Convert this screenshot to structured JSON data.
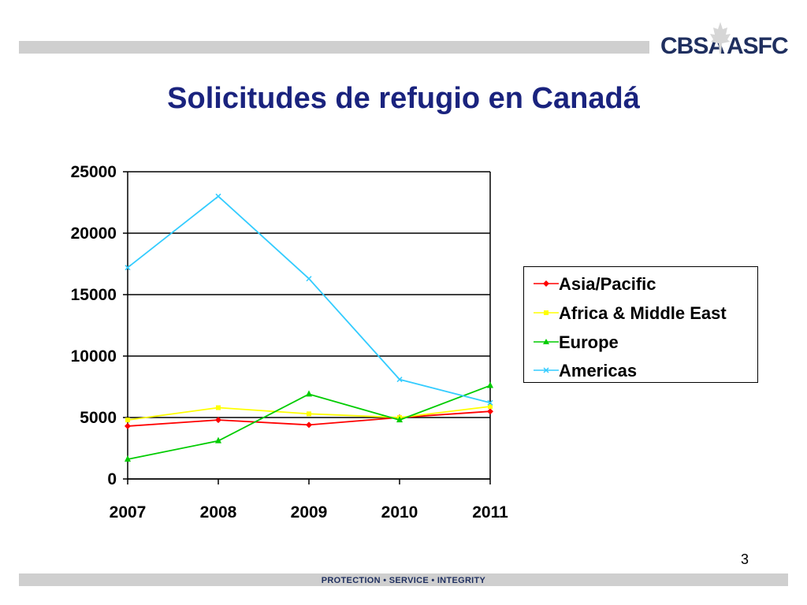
{
  "header": {
    "logo_left": "CBSA",
    "logo_right": "ASFC",
    "title": "Solicitudes de refugio en Canadá"
  },
  "chart_data": {
    "type": "line",
    "title": "",
    "xlabel": "",
    "ylabel": "",
    "categories": [
      "2007",
      "2008",
      "2009",
      "2010",
      "2011"
    ],
    "ylim": [
      0,
      25000
    ],
    "yticks": [
      0,
      5000,
      10000,
      15000,
      20000,
      25000
    ],
    "grid": true,
    "legend_position": "right",
    "series": [
      {
        "name": "Asia/Pacific",
        "color": "#ff0000",
        "marker": "diamond",
        "values": [
          4300,
          4800,
          4400,
          5000,
          5500
        ]
      },
      {
        "name": "Africa & Middle East",
        "color": "#ffff00",
        "marker": "square",
        "values": [
          4800,
          5800,
          5300,
          5000,
          5900
        ]
      },
      {
        "name": "Europe",
        "color": "#00cc00",
        "marker": "triangle",
        "values": [
          1600,
          3100,
          6900,
          4800,
          7600
        ]
      },
      {
        "name": "Americas",
        "color": "#33ccff",
        "marker": "x",
        "values": [
          17200,
          23000,
          16300,
          8100,
          6200
        ]
      }
    ]
  },
  "footer": {
    "page_number": "3",
    "tagline": "PROTECTION • SERVICE • INTEGRITY"
  }
}
